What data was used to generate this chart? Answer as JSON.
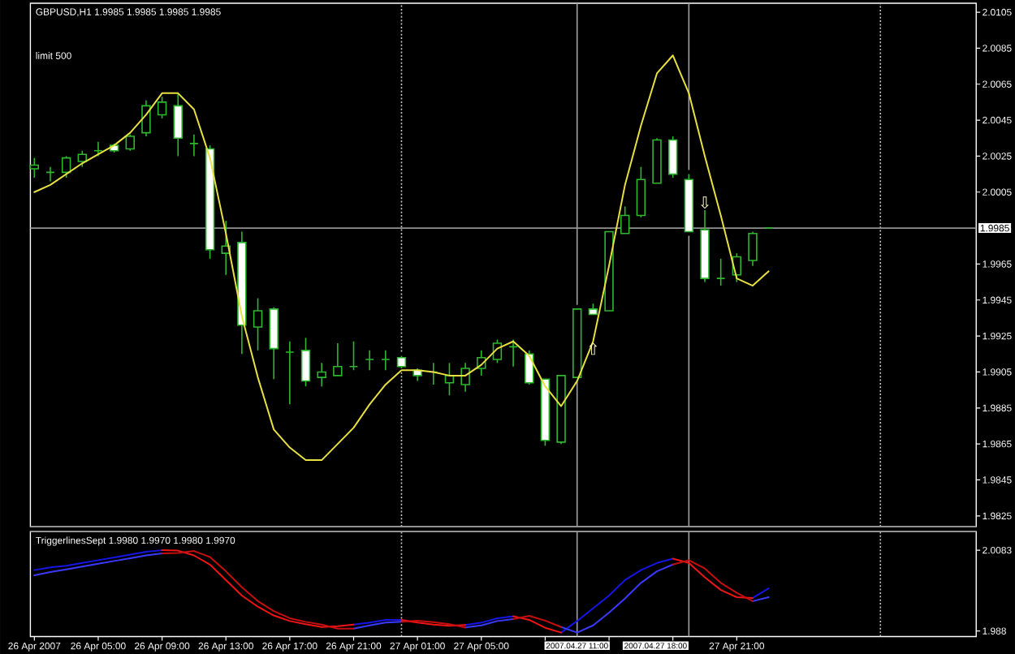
{
  "chart_data": [
    {
      "type": "candlestick",
      "title": "GBPUSD,H1 1.9985 1.9985 1.9985 1.9985",
      "annotations": [
        "limit 500",
        {
          "text": "⇧",
          "x": "2007-04-27T12:00",
          "y": 1.9922
        },
        {
          "text": "⇩",
          "x": "2007-04-27T19:00",
          "y": 1.9995
        }
      ],
      "x": [
        "2007-04-26T01:00",
        "2007-04-26T02:00",
        "2007-04-26T03:00",
        "2007-04-26T04:00",
        "2007-04-26T05:00",
        "2007-04-26T06:00",
        "2007-04-26T07:00",
        "2007-04-26T08:00",
        "2007-04-26T09:00",
        "2007-04-26T10:00",
        "2007-04-26T11:00",
        "2007-04-26T12:00",
        "2007-04-26T13:00",
        "2007-04-26T14:00",
        "2007-04-26T15:00",
        "2007-04-26T16:00",
        "2007-04-26T17:00",
        "2007-04-26T18:00",
        "2007-04-26T19:00",
        "2007-04-26T20:00",
        "2007-04-26T21:00",
        "2007-04-26T22:00",
        "2007-04-26T23:00",
        "2007-04-27T00:00",
        "2007-04-27T01:00",
        "2007-04-27T02:00",
        "2007-04-27T03:00",
        "2007-04-27T04:00",
        "2007-04-27T05:00",
        "2007-04-27T06:00",
        "2007-04-27T07:00",
        "2007-04-27T08:00",
        "2007-04-27T09:00",
        "2007-04-27T10:00",
        "2007-04-27T11:00",
        "2007-04-27T12:00",
        "2007-04-27T13:00",
        "2007-04-27T14:00",
        "2007-04-27T15:00",
        "2007-04-27T16:00",
        "2007-04-27T17:00",
        "2007-04-27T18:00",
        "2007-04-27T19:00",
        "2007-04-27T20:00",
        "2007-04-27T21:00",
        "2007-04-27T22:00",
        "2007-04-27T23:00"
      ],
      "ohlc": [
        [
          2.0018,
          2.0024,
          2.0013,
          2.002
        ],
        [
          2.0016,
          2.0019,
          2.0011,
          2.0016
        ],
        [
          2.0016,
          2.0025,
          2.0013,
          2.0024
        ],
        [
          2.0022,
          2.0028,
          2.0019,
          2.0026
        ],
        [
          2.0028,
          2.0033,
          2.0025,
          2.0028
        ],
        [
          2.0031,
          2.0032,
          2.0027,
          2.0028
        ],
        [
          2.0029,
          2.0037,
          2.0028,
          2.0036
        ],
        [
          2.0038,
          2.0056,
          2.0036,
          2.0053
        ],
        [
          2.0048,
          2.0058,
          2.0046,
          2.0055
        ],
        [
          2.0053,
          2.006,
          2.0025,
          2.0035
        ],
        [
          2.0032,
          2.0037,
          2.0025,
          2.0032
        ],
        [
          2.0029,
          2.0031,
          1.9968,
          1.9973
        ],
        [
          1.9971,
          1.9989,
          1.9959,
          1.9975
        ],
        [
          1.9977,
          1.9983,
          1.9915,
          1.9931
        ],
        [
          1.993,
          1.9946,
          1.9917,
          1.9939
        ],
        [
          1.994,
          1.9941,
          1.9901,
          1.9918
        ],
        [
          1.9916,
          1.9922,
          1.9887,
          1.9916
        ],
        [
          1.9917,
          1.9924,
          1.9897,
          1.99
        ],
        [
          1.9902,
          1.991,
          1.9897,
          1.9905
        ],
        [
          1.9903,
          1.9921,
          1.9903,
          1.9908
        ],
        [
          1.9908,
          1.9922,
          1.9906,
          1.9908
        ],
        [
          1.9912,
          1.9917,
          1.9906,
          1.9912
        ],
        [
          1.9912,
          1.9917,
          1.9906,
          1.9912
        ],
        [
          1.9913,
          1.9914,
          1.9907,
          1.9908
        ],
        [
          1.9906,
          1.9907,
          1.99,
          1.9903
        ],
        [
          1.9905,
          1.991,
          1.9898,
          1.9905
        ],
        [
          1.9899,
          1.991,
          1.9892,
          1.9903
        ],
        [
          1.9898,
          1.991,
          1.9894,
          1.9907
        ],
        [
          1.9907,
          1.9917,
          1.9903,
          1.9913
        ],
        [
          1.9912,
          1.9923,
          1.991,
          1.9921
        ],
        [
          1.9919,
          1.9923,
          1.9908,
          1.9919
        ],
        [
          1.9915,
          1.9917,
          1.9898,
          1.9899
        ],
        [
          1.9901,
          1.9901,
          1.9864,
          1.9867
        ],
        [
          1.9866,
          1.9903,
          1.9865,
          1.9903
        ],
        [
          1.9902,
          1.994,
          1.9902,
          1.994
        ],
        [
          1.994,
          1.9943,
          1.9937,
          1.9937
        ],
        [
          1.9939,
          1.9983,
          1.9939,
          1.9983
        ],
        [
          1.9982,
          1.9997,
          1.9982,
          1.9992
        ],
        [
          1.9992,
          2.0019,
          1.9991,
          2.0012
        ],
        [
          2.001,
          2.0035,
          2.001,
          2.0034
        ],
        [
          2.0034,
          2.0036,
          2.0013,
          2.0015
        ],
        [
          2.0012,
          2.0015,
          1.9983,
          1.9983
        ],
        [
          1.9984,
          1.9995,
          1.9955,
          1.9957
        ],
        [
          1.9957,
          1.9968,
          1.9953,
          1.9957
        ],
        [
          1.9959,
          1.9971,
          1.9955,
          1.9969
        ],
        [
          1.9967,
          1.9983,
          1.9964,
          1.9982
        ],
        [
          1.9985,
          1.9985,
          1.9985,
          1.9985
        ]
      ],
      "color": "#2eb82e",
      "colors": [
        "#000000",
        "#2eb82e",
        "#000000",
        "#000000",
        "#2eb82e",
        "#ffffff",
        "#000000",
        "#000000",
        "#000000",
        "#ffffff",
        "#2eb82e",
        "#ffffff",
        "#000000",
        "#ffffff",
        "#000000",
        "#ffffff",
        "#2eb82e",
        "#ffffff",
        "#000000",
        "#000000",
        "#2eb82e",
        "#2eb82e",
        "#2eb82e",
        "#ffffff",
        "#ffffff",
        "#2eb82e",
        "#000000",
        "#000000",
        "#000000",
        "#000000",
        "#2eb82e",
        "#ffffff",
        "#ffffff",
        "#000000",
        "#000000",
        "#ffffff",
        "#000000",
        "#000000",
        "#000000",
        "#000000",
        "#ffffff",
        "#ffffff",
        "#ffffff",
        "#2eb82e",
        "#000000",
        "#000000",
        "#2eb82e"
      ],
      "series": [
        {
          "type": "line",
          "color": "#e8e040",
          "values": [
            2.0005,
            2.0009,
            2.0015,
            2.0021,
            2.0026,
            2.0031,
            2.0038,
            2.0048,
            2.006,
            2.006,
            2.0051,
            2.0024,
            1.9982,
            1.9936,
            1.9902,
            1.9873,
            1.9863,
            1.9856,
            1.9856,
            1.9865,
            1.9874,
            1.9887,
            1.9898,
            1.9906,
            1.9906,
            1.9905,
            1.9903,
            1.9903,
            1.9909,
            1.9918,
            1.9922,
            1.9914,
            1.9897,
            1.9886,
            1.99,
            1.9922,
            1.9964,
            2.0009,
            2.0042,
            2.0071,
            2.0081,
            2.006,
            2.0025,
            1.9992,
            1.9957,
            1.9953,
            1.9961
          ]
        }
      ],
      "xlim": [
        "2007-04-26T00:45",
        "2007-04-28T12:00"
      ],
      "ylim": [
        1.9819,
        2.011
      ],
      "yticks": [
        2.0105,
        2.0085,
        2.0065,
        2.0045,
        2.0025,
        2.0005,
        1.9965,
        1.9945,
        1.9925,
        1.9905,
        1.9885,
        1.9865,
        1.9845,
        1.9825
      ],
      "ref_lines": [
        {
          "axis": "x",
          "value": "2007-04-27T00:00",
          "color": "#c8c8c8",
          "line_style": "dotted"
        },
        {
          "axis": "x",
          "value": "2007-04-27T11:00",
          "color": "#a0a0a0"
        },
        {
          "axis": "x",
          "value": "2007-04-27T18:00",
          "color": "#a0a0a0"
        },
        {
          "axis": "x",
          "value": "2007-04-28T06:00",
          "color": "#c8c8c8",
          "line_style": "dotted"
        },
        {
          "axis": "y",
          "value": 1.9985,
          "label": "1.9985",
          "color": "#909090"
        }
      ],
      "tick_labels": "y"
    },
    {
      "type": "line",
      "title": "TriggerlinesSept 1.9980 1.9970 1.9980 1.9970",
      "x": [
        "2007-04-26T01:00",
        "2007-04-26T02:00",
        "2007-04-26T03:00",
        "2007-04-26T04:00",
        "2007-04-26T05:00",
        "2007-04-26T06:00",
        "2007-04-26T07:00",
        "2007-04-26T08:00",
        "2007-04-26T09:00",
        "2007-04-26T10:00",
        "2007-04-26T11:00",
        "2007-04-26T12:00",
        "2007-04-26T13:00",
        "2007-04-26T14:00",
        "2007-04-26T15:00",
        "2007-04-26T16:00",
        "2007-04-26T17:00",
        "2007-04-26T18:00",
        "2007-04-26T19:00",
        "2007-04-26T20:00",
        "2007-04-26T21:00",
        "2007-04-26T22:00",
        "2007-04-26T23:00",
        "2007-04-27T00:00",
        "2007-04-27T01:00",
        "2007-04-27T02:00",
        "2007-04-27T03:00",
        "2007-04-27T04:00",
        "2007-04-27T05:00",
        "2007-04-27T06:00",
        "2007-04-27T07:00",
        "2007-04-27T08:00",
        "2007-04-27T09:00",
        "2007-04-27T10:00",
        "2007-04-27T11:00",
        "2007-04-27T12:00",
        "2007-04-27T13:00",
        "2007-04-27T14:00",
        "2007-04-27T15:00",
        "2007-04-27T16:00",
        "2007-04-27T17:00",
        "2007-04-27T18:00",
        "2007-04-27T19:00",
        "2007-04-27T20:00",
        "2007-04-27T21:00",
        "2007-04-27T22:00",
        "2007-04-27T23:00"
      ],
      "series": [
        {
          "color": "#1515e6",
          "values": [
            2.0033,
            2.004,
            2.0044,
            2.0051,
            2.0058,
            2.0065,
            2.0072,
            2.0079,
            2.0083,
            null,
            null,
            null,
            null,
            null,
            null,
            null,
            null,
            null,
            null,
            null,
            1.9896,
            1.9901,
            1.9908,
            1.9908,
            null,
            null,
            null,
            1.9895,
            1.9901,
            1.9912,
            1.9917,
            null,
            null,
            1.9876,
            1.9905,
            1.9937,
            1.9969,
            2.0008,
            2.0033,
            2.0051,
            2.0062,
            null,
            null,
            null,
            null,
            1.9963,
            1.9987
          ]
        },
        {
          "color": "#f01515",
          "values": [
            null,
            null,
            null,
            null,
            null,
            null,
            null,
            null,
            2.0083,
            2.0082,
            2.007,
            2.0047,
            2.0008,
            1.9969,
            1.9941,
            1.9919,
            1.9905,
            1.9897,
            1.989,
            1.9892,
            1.9896,
            null,
            null,
            1.9908,
            1.9901,
            1.9896,
            1.9893,
            1.9895,
            null,
            null,
            1.9917,
            1.9908,
            1.9888,
            1.9876,
            null,
            null,
            null,
            null,
            null,
            null,
            2.0062,
            2.0051,
            2.0015,
            1.9983,
            1.9965,
            1.9963,
            null
          ]
        },
        {
          "color": "#3a3aff",
          "values": [
            2.002,
            2.0028,
            2.0035,
            2.0042,
            2.0049,
            2.0056,
            2.0063,
            2.007,
            2.0075,
            null,
            null,
            null,
            null,
            null,
            null,
            null,
            null,
            null,
            null,
            null,
            1.9886,
            1.9894,
            1.9901,
            1.9903,
            null,
            null,
            null,
            1.9889,
            1.9894,
            1.9905,
            1.991,
            null,
            null,
            1.989,
            1.9876,
            1.9894,
            1.9926,
            1.9962,
            2.0001,
            2.003,
            2.0047,
            null,
            null,
            null,
            null,
            1.9955,
            1.9965
          ]
        },
        {
          "color": "#c80e0e",
          "values": [
            null,
            null,
            null,
            null,
            null,
            null,
            null,
            null,
            2.0075,
            2.0076,
            2.0081,
            2.0066,
            2.003,
            1.999,
            1.9955,
            1.993,
            1.9912,
            1.9903,
            1.9896,
            1.9886,
            1.9886,
            null,
            null,
            1.9903,
            1.9906,
            1.9902,
            1.9897,
            1.9889,
            null,
            null,
            1.991,
            1.9918,
            1.9906,
            1.989,
            null,
            null,
            null,
            null,
            null,
            null,
            2.0047,
            2.0058,
            2.0037,
            2.0001,
            1.9976,
            1.9955,
            null
          ]
        }
      ],
      "xlim": [
        "2007-04-26T00:45",
        "2007-04-28T12:00"
      ],
      "ylim": [
        1.9866,
        2.013
      ],
      "xticks": [
        {
          "value": "2007-04-26T01:00",
          "label": "26 Apr 2007"
        },
        {
          "value": "2007-04-26T05:00",
          "label": "26 Apr 05:00"
        },
        {
          "value": "2007-04-26T09:00",
          "label": "26 Apr 09:00"
        },
        {
          "value": "2007-04-26T13:00",
          "label": "26 Apr 13:00"
        },
        {
          "value": "2007-04-26T17:00",
          "label": "26 Apr 17:00"
        },
        {
          "value": "2007-04-26T21:00",
          "label": "26 Apr 21:00"
        },
        {
          "value": "2007-04-27T01:00",
          "label": "27 Apr 01:00"
        },
        {
          "value": "2007-04-27T05:00",
          "label": "27 Apr 05:00"
        },
        {
          "value": "2007-04-27T09:00",
          "label": null
        },
        {
          "value": "2007-04-27T13:00",
          "label": null
        },
        {
          "value": "2007-04-27T17:00",
          "label": null
        },
        {
          "value": "2007-04-27T21:00",
          "label": "27 Apr 21:00"
        }
      ],
      "yticks": [
        2.0083,
        1.988
      ],
      "ref_lines": [
        {
          "axis": "x",
          "value": "2007-04-27T00:00",
          "color": "#c8c8c8",
          "line_style": "dotted"
        },
        {
          "axis": "x",
          "value": "2007-04-27T11:00",
          "color": "#a0a0a0",
          "label": "2007.04.27 11:00"
        },
        {
          "axis": "x",
          "value": "2007-04-27T18:00",
          "color": "#a0a0a0",
          "label": "2007.04.27 18:00"
        },
        {
          "axis": "x",
          "value": "2007-04-28T06:00",
          "color": "#c8c8c8",
          "line_style": "dotted"
        }
      ]
    }
  ]
}
